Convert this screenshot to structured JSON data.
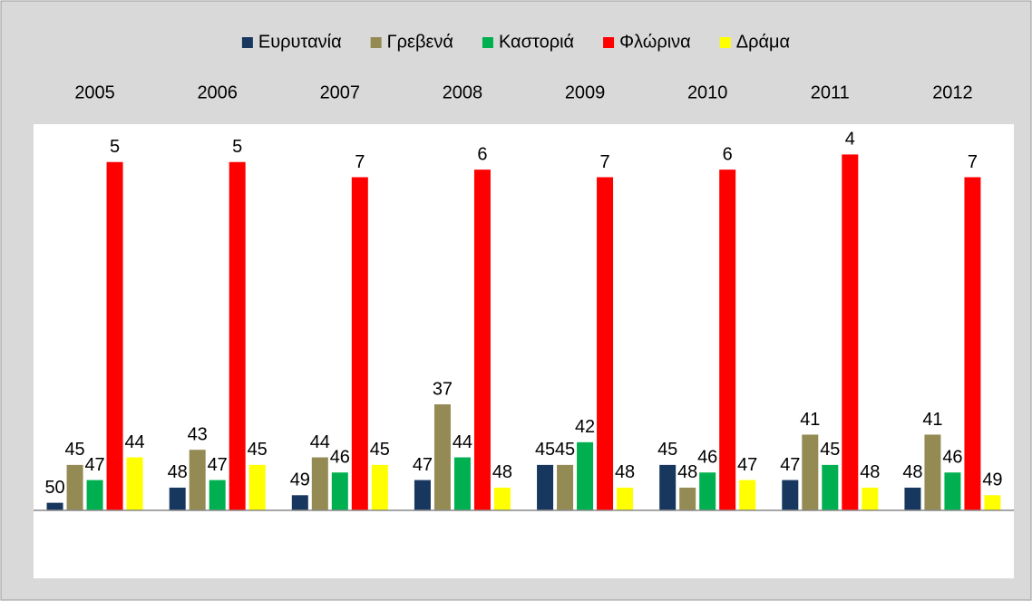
{
  "chart_data": {
    "type": "bar",
    "reversed_axis": true,
    "categories": [
      "2005",
      "2006",
      "2007",
      "2008",
      "2009",
      "2010",
      "2011",
      "2012"
    ],
    "series": [
      {
        "name": "Ευρυτανία",
        "color": "#17375e",
        "values": [
          50,
          48,
          49,
          47,
          45,
          45,
          47,
          48
        ]
      },
      {
        "name": "Γρεβενά",
        "color": "#948a54",
        "values": [
          45,
          43,
          44,
          37,
          45,
          48,
          41,
          41
        ]
      },
      {
        "name": "Καστοριά",
        "color": "#00b050",
        "values": [
          47,
          47,
          46,
          44,
          42,
          46,
          45,
          46
        ]
      },
      {
        "name": "Φλώρινα",
        "color": "#ff0000",
        "values": [
          5,
          5,
          7,
          6,
          7,
          6,
          4,
          7
        ]
      },
      {
        "name": "Δράμα",
        "color": "#ffff00",
        "values": [
          44,
          45,
          45,
          48,
          48,
          47,
          48,
          49
        ]
      }
    ],
    "ylim": [
      51,
      0
    ],
    "legend": "top"
  }
}
